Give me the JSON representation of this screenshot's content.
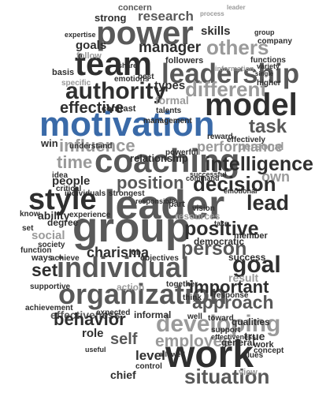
{
  "word_cloud": {
    "colors": {
      "accent": "#3a6aa8",
      "dark": "#2f2f2f",
      "mid": "#595959",
      "light": "#9a9a9a",
      "pale": "#b8b8b8"
    },
    "words": [
      {
        "text": "concern",
        "tone": "mid"
      },
      {
        "text": "strong",
        "tone": "dark"
      },
      {
        "text": "research",
        "tone": "mid"
      },
      {
        "text": "process",
        "tone": "light"
      },
      {
        "text": "leader",
        "tone": "light"
      },
      {
        "text": "power",
        "tone": "mid"
      },
      {
        "text": "skills",
        "tone": "dark"
      },
      {
        "text": "goals",
        "tone": "dark"
      },
      {
        "text": "manager",
        "tone": "dark"
      },
      {
        "text": "others",
        "tone": "light"
      },
      {
        "text": "team",
        "tone": "dark"
      },
      {
        "text": "follow",
        "tone": "light"
      },
      {
        "text": "followers",
        "tone": "dark"
      },
      {
        "text": "leadership",
        "tone": "mid"
      },
      {
        "text": "authority",
        "tone": "dark"
      },
      {
        "text": "types",
        "tone": "dark"
      },
      {
        "text": "different",
        "tone": "light"
      },
      {
        "text": "model",
        "tone": "dark"
      },
      {
        "text": "effective",
        "tone": "dark"
      },
      {
        "text": "formal",
        "tone": "light"
      },
      {
        "text": "motivation",
        "tone": "accent"
      },
      {
        "text": "task",
        "tone": "mid"
      },
      {
        "text": "influence",
        "tone": "light"
      },
      {
        "text": "performance",
        "tone": "light"
      },
      {
        "text": "coaching",
        "tone": "mid"
      },
      {
        "text": "intelligence",
        "tone": "dark"
      },
      {
        "text": "time",
        "tone": "light"
      },
      {
        "text": "own",
        "tone": "light"
      },
      {
        "text": "people",
        "tone": "dark"
      },
      {
        "text": "position",
        "tone": "mid"
      },
      {
        "text": "decision",
        "tone": "dark"
      },
      {
        "text": "style",
        "tone": "dark"
      },
      {
        "text": "leader",
        "tone": "mid"
      },
      {
        "text": "lead",
        "tone": "dark"
      },
      {
        "text": "ability",
        "tone": "dark"
      },
      {
        "text": "group",
        "tone": "mid"
      },
      {
        "text": "positive",
        "tone": "dark"
      },
      {
        "text": "member",
        "tone": "dark"
      },
      {
        "text": "social",
        "tone": "light"
      },
      {
        "text": "charisma",
        "tone": "dark"
      },
      {
        "text": "person",
        "tone": "mid"
      },
      {
        "text": "goal",
        "tone": "dark"
      },
      {
        "text": "set",
        "tone": "dark"
      },
      {
        "text": "individual",
        "tone": "mid"
      },
      {
        "text": "organization",
        "tone": "mid"
      },
      {
        "text": "effectiveness",
        "tone": "mid"
      },
      {
        "text": "important",
        "tone": "dark"
      },
      {
        "text": "approach",
        "tone": "mid"
      },
      {
        "text": "behavior",
        "tone": "dark"
      },
      {
        "text": "developing",
        "tone": "light"
      },
      {
        "text": "employee",
        "tone": "light"
      },
      {
        "text": "self",
        "tone": "mid"
      },
      {
        "text": "work",
        "tone": "dark"
      },
      {
        "text": "level",
        "tone": "dark"
      },
      {
        "text": "situation",
        "tone": "mid"
      },
      {
        "text": "chief",
        "tone": "dark"
      },
      {
        "text": "view",
        "tone": "light"
      },
      {
        "text": "role",
        "tone": "dark"
      },
      {
        "text": "qualities",
        "tone": "dark"
      },
      {
        "text": "true",
        "tone": "dark"
      },
      {
        "text": "experience",
        "tone": "dark"
      },
      {
        "text": "degree",
        "tone": "dark"
      },
      {
        "text": "society",
        "tone": "dark"
      },
      {
        "text": "relationship",
        "tone": "dark"
      },
      {
        "text": "success",
        "tone": "dark"
      },
      {
        "text": "result",
        "tone": "light"
      },
      {
        "text": "action",
        "tone": "light"
      },
      {
        "text": "general",
        "tone": "dark"
      },
      {
        "text": "support",
        "tone": "dark"
      },
      {
        "text": "control",
        "tone": "dark"
      },
      {
        "text": "democratic",
        "tone": "dark"
      },
      {
        "text": "values",
        "tone": "dark"
      },
      {
        "text": "personal",
        "tone": "light"
      },
      {
        "text": "command",
        "tone": "dark"
      },
      {
        "text": "emotions",
        "tone": "dark"
      },
      {
        "text": "best",
        "tone": "dark"
      },
      {
        "text": "contrast",
        "tone": "dark"
      },
      {
        "text": "management",
        "tone": "dark"
      },
      {
        "text": "information",
        "tone": "light"
      },
      {
        "text": "company",
        "tone": "dark"
      },
      {
        "text": "group",
        "tone": "dark"
      },
      {
        "text": "higher",
        "tone": "dark"
      },
      {
        "text": "single",
        "tone": "dark"
      },
      {
        "text": "functions",
        "tone": "dark"
      },
      {
        "text": "variety",
        "tone": "dark"
      },
      {
        "text": "expertise",
        "tone": "dark"
      },
      {
        "text": "share",
        "tone": "dark"
      },
      {
        "text": "basis",
        "tone": "dark"
      },
      {
        "text": "specific",
        "tone": "light"
      },
      {
        "text": "talents",
        "tone": "dark"
      },
      {
        "text": "reward",
        "tone": "dark"
      },
      {
        "text": "effectively",
        "tone": "dark"
      },
      {
        "text": "win",
        "tone": "dark"
      },
      {
        "text": "understand",
        "tone": "dark"
      },
      {
        "text": "powerful",
        "tone": "dark"
      },
      {
        "text": "idea",
        "tone": "dark"
      },
      {
        "text": "critical",
        "tone": "dark"
      },
      {
        "text": "individuals",
        "tone": "dark"
      },
      {
        "text": "strongest",
        "tone": "dark"
      },
      {
        "text": "responsible",
        "tone": "dark"
      },
      {
        "text": "successful",
        "tone": "dark"
      },
      {
        "text": "part",
        "tone": "dark"
      },
      {
        "text": "vision",
        "tone": "dark"
      },
      {
        "text": "emotional",
        "tone": "dark"
      },
      {
        "text": "know",
        "tone": "dark"
      },
      {
        "text": "set",
        "tone": "dark"
      },
      {
        "text": "resources",
        "tone": "light"
      },
      {
        "text": "take",
        "tone": "dark"
      },
      {
        "text": "function",
        "tone": "dark"
      },
      {
        "text": "achieve",
        "tone": "dark"
      },
      {
        "text": "objectives",
        "tone": "dark"
      },
      {
        "text": "job",
        "tone": "dark"
      },
      {
        "text": "ways",
        "tone": "dark"
      },
      {
        "text": "supportive",
        "tone": "dark"
      },
      {
        "text": "together",
        "tone": "dark"
      },
      {
        "text": "response",
        "tone": "dark"
      },
      {
        "text": "think",
        "tone": "dark"
      },
      {
        "text": "achievement",
        "tone": "dark"
      },
      {
        "text": "expected",
        "tone": "dark"
      },
      {
        "text": "informal",
        "tone": "dark"
      },
      {
        "text": "toward",
        "tone": "dark"
      },
      {
        "text": "well",
        "tone": "dark"
      },
      {
        "text": "work",
        "tone": "dark"
      },
      {
        "text": "concept",
        "tone": "dark"
      },
      {
        "text": "useful",
        "tone": "dark"
      },
      {
        "text": "allowed",
        "tone": "dark"
      },
      {
        "text": "effectiveness",
        "tone": "dark"
      }
    ]
  }
}
